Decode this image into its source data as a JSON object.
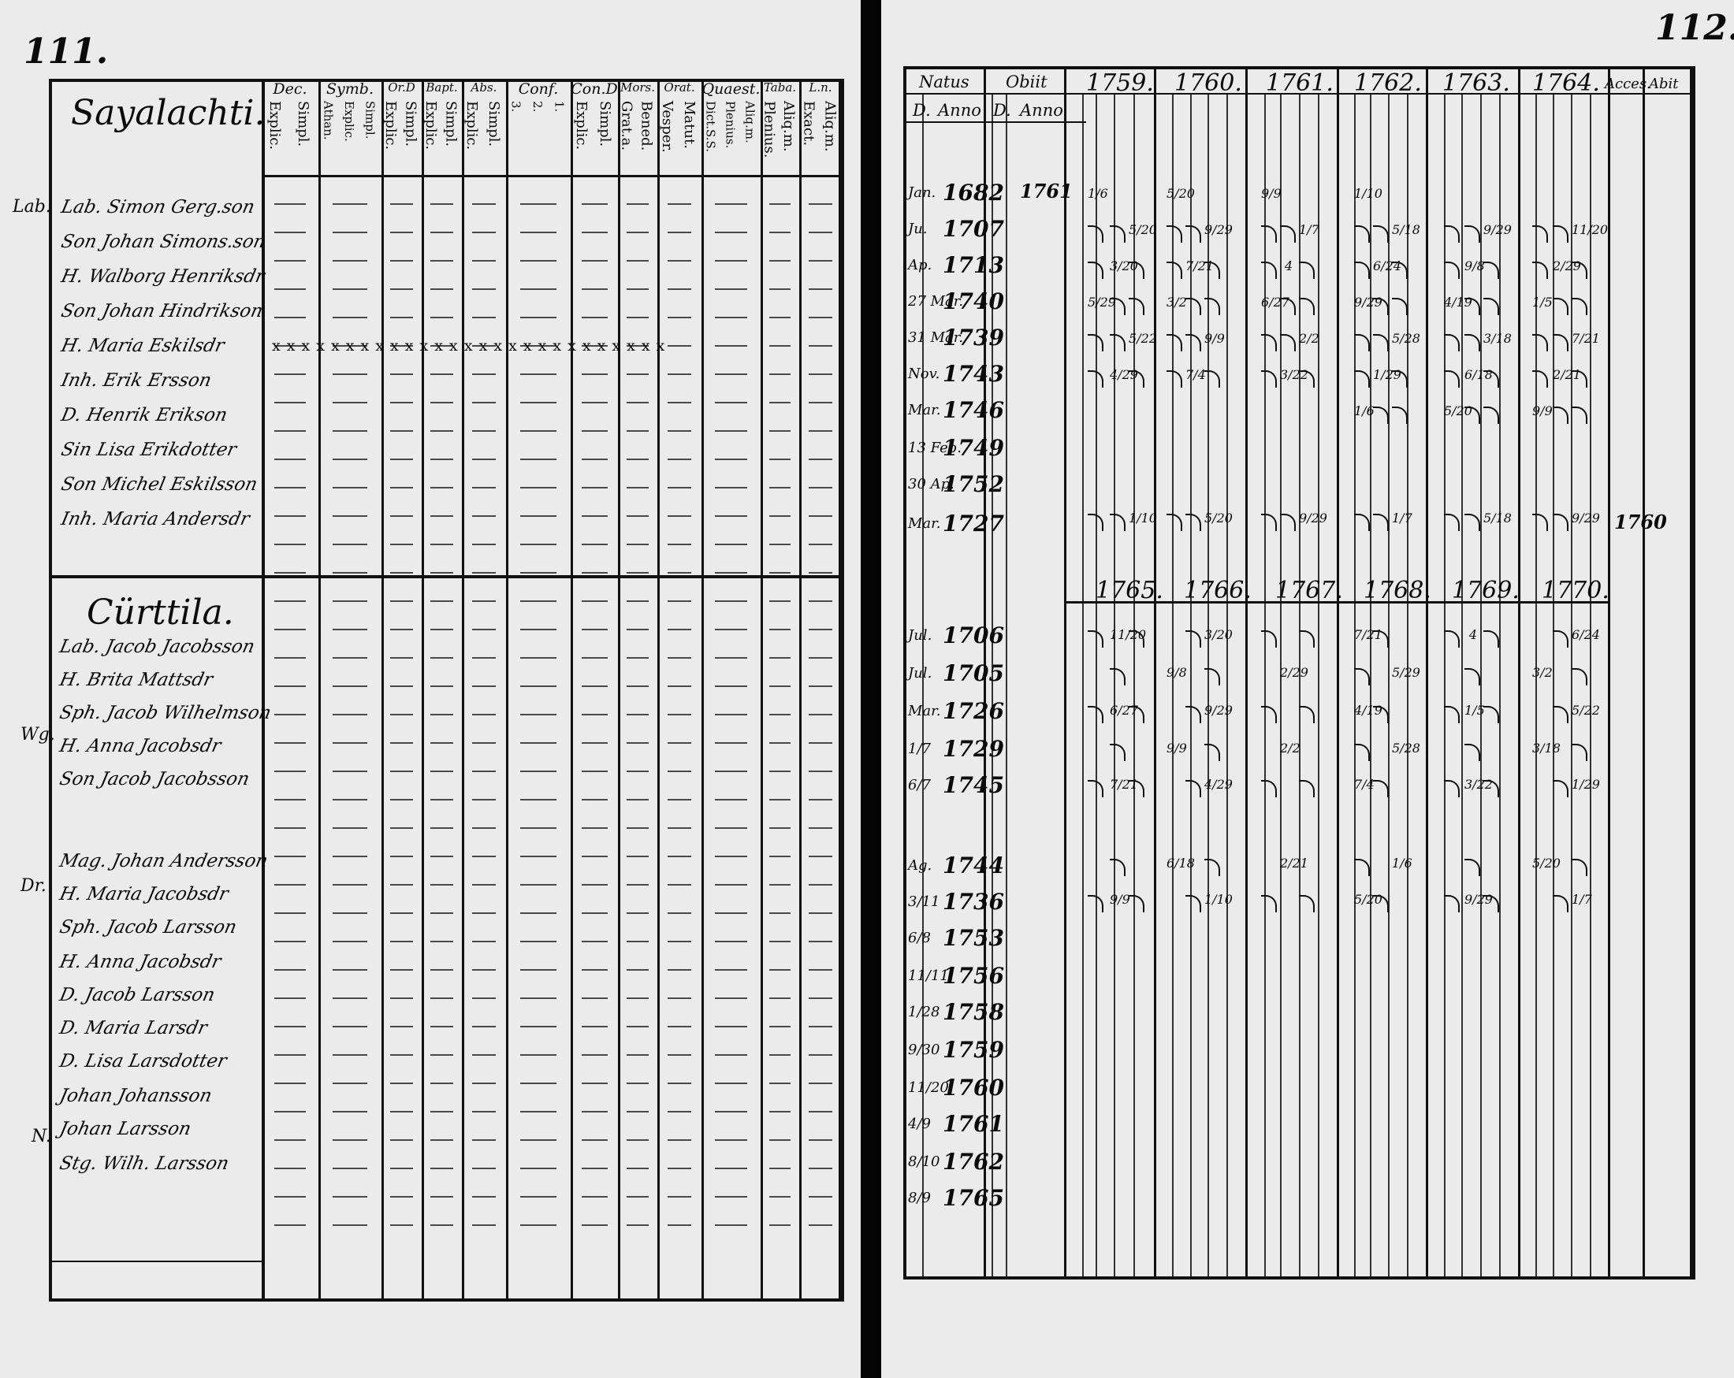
{
  "left_page": {
    "page_number": "111.",
    "columns": [
      {
        "head": "Dec.",
        "subs": [
          "Explic.",
          "Simpl."
        ]
      },
      {
        "head": "Symb.",
        "subs": [
          "Athan.",
          "Explic.",
          "Simpl."
        ]
      },
      {
        "head": "Or.D",
        "subs": [
          "Explic.",
          "Simpl."
        ]
      },
      {
        "head": "Bapt.",
        "subs": [
          "Explic.",
          "Simpl."
        ]
      },
      {
        "head": "Abs.",
        "subs": [
          "Explic.",
          "Simpl."
        ]
      },
      {
        "head": "Conf.",
        "subs": [
          "3.",
          "2.",
          "1."
        ]
      },
      {
        "head": "Con.D",
        "subs": [
          "Explic.",
          "Simpl."
        ]
      },
      {
        "head": "Mors.",
        "subs": [
          "Grat.a.",
          "Bened."
        ]
      },
      {
        "head": "Orat.",
        "subs": [
          "Vesper.",
          "Matut."
        ]
      },
      {
        "head": "Quaest.",
        "subs": [
          "Dict.S.S.",
          "Plenius.",
          "Aliq.m."
        ]
      },
      {
        "head": "Taba.",
        "subs": [
          "Plenius.",
          "Aliq.m."
        ]
      },
      {
        "head": "L.n.",
        "subs": [
          "Exact.",
          "Aliq.m."
        ]
      }
    ],
    "section1": {
      "title": "Sayalachti.",
      "margin_note": "Lab.",
      "entries": [
        "Lab. Simon Gerg.son",
        "Son Johan Simons.son",
        "H. Walborg Henriksdr",
        "Son Johan Hindrikson",
        "H. Maria Eskilsdr",
        "Inh. Erik Ersson",
        "D. Henrik Erikson",
        "Sin Lisa Erikdotter",
        "Son Michel Eskilsson",
        "Inh. Maria Andersdr"
      ],
      "marks_row": "x x   x x x   x x   x x   x x   x x x   x x   x x   x x   x x x   x x   x x"
    },
    "section2": {
      "title": "Cürttila.",
      "margin_notes": [
        "Wg.",
        "Dr.",
        "N."
      ],
      "entries": [
        "Lab. Jacob Jacobsson",
        "H. Brita Mattsdr",
        "Sph. Jacob Wilhelmson",
        "H. Anna Jacobsdr",
        "Son Jacob Jacobsson",
        "Mag. Johan Andersson",
        "H. Maria Jacobsdr",
        "Sph. Jacob Larsson",
        "H. Anna Jacobsdr",
        "D. Jacob Larsson",
        "D. Maria Larsdr",
        "D. Lisa Larsdotter",
        "Johan Johansson",
        "Johan Larsson",
        "Stg. Wilh. Larsson"
      ]
    }
  },
  "right_page": {
    "page_number": "112.",
    "headers": {
      "natus": "Natus",
      "obiit": "Obiit",
      "d": "D.",
      "anno": "Anno",
      "accessit": "Acces.",
      "abiit": "Abit"
    },
    "years_top": [
      "1759.",
      "1760.",
      "1761.",
      "1762.",
      "1763.",
      "1764."
    ],
    "years_bottom": [
      "1765.",
      "1766.",
      "1767.",
      "1768.",
      "1769.",
      "1770."
    ],
    "section1_births": [
      {
        "day": "Jan.",
        "year": "1682",
        "death_year": "1761"
      },
      {
        "day": "Ju.",
        "year": "1707"
      },
      {
        "day": "Ap.",
        "year": "1713"
      },
      {
        "day": "27 Mar.",
        "year": "1740"
      },
      {
        "day": "31 Mar.",
        "year": "1739"
      },
      {
        "day": "Nov.",
        "year": "1743"
      },
      {
        "day": "Mar.",
        "year": "1746"
      },
      {
        "day": "13 Feb.",
        "year": "1749"
      },
      {
        "day": "30 Ap.",
        "year": "1752"
      },
      {
        "day": "Mar.",
        "year": "1727",
        "accessit": "1760"
      }
    ],
    "section2_births": [
      {
        "day": "Jul.",
        "year": "1706"
      },
      {
        "day": "Jul.",
        "year": "1705"
      },
      {
        "day": "Mar.",
        "year": "1726"
      },
      {
        "day": "1/7",
        "year": "1729"
      },
      {
        "day": "6/7",
        "year": "1745"
      },
      {
        "day": "Ag.",
        "year": "1744"
      },
      {
        "day": "3/11",
        "year": "1736"
      },
      {
        "day": "6/8",
        "year": "1753"
      },
      {
        "day": "11/11",
        "year": "1756"
      },
      {
        "day": "1/28",
        "year": "1758"
      },
      {
        "day": "9/30",
        "year": "1759"
      },
      {
        "day": "11/20",
        "year": "1760"
      },
      {
        "day": "4/9",
        "year": "1761"
      },
      {
        "day": "8/10",
        "year": "1762"
      },
      {
        "day": "8/9",
        "year": "1765"
      }
    ],
    "exam_marks": {
      "fraction_samples": [
        "1/6",
        "5/20",
        "9/9",
        "1/10",
        "5/20",
        "9/29",
        "1/7",
        "5/18",
        "9/29",
        "11/20",
        "3/20",
        "7/21",
        "4",
        "6/24",
        "9/8",
        "2/29",
        "5/29",
        "3/2",
        "6/27",
        "9/29",
        "4/19",
        "1/5",
        "5/22",
        "9/9",
        "2/2",
        "5/28",
        "3/18",
        "7/21",
        "4/29",
        "7/4",
        "3/22",
        "1/29",
        "6/18",
        "2/21"
      ]
    }
  }
}
